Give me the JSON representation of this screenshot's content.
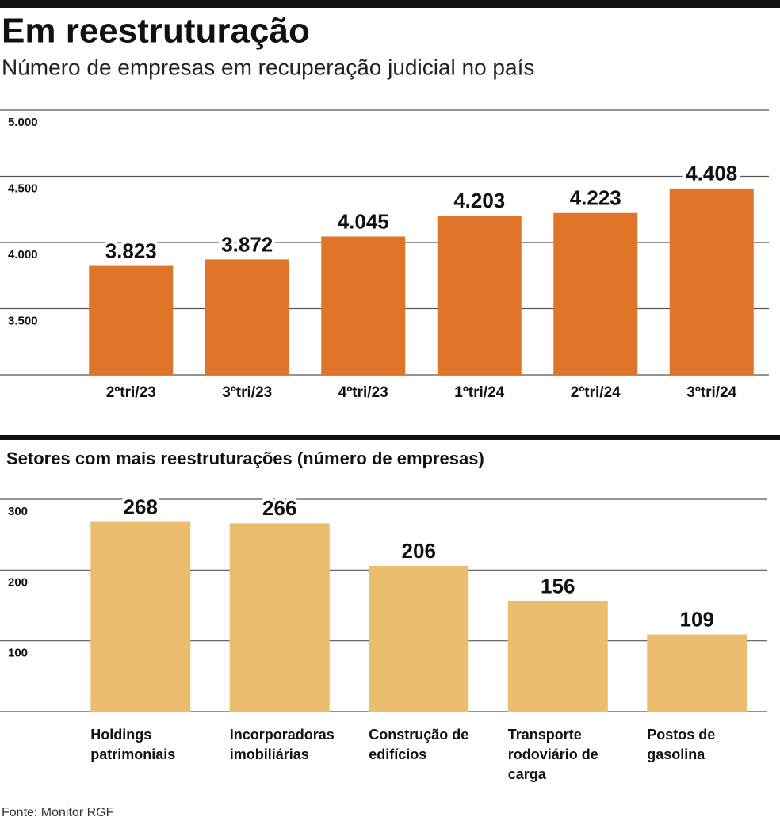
{
  "chart_data": [
    {
      "type": "bar",
      "title": "Em reestruturação",
      "subtitle": "Número de empresas em recuperação judicial no país",
      "categories": [
        "2ºtri/23",
        "3ºtri/23",
        "4ºtri/23",
        "1ºtri/24",
        "2ºtri/24",
        "3ºtri/24"
      ],
      "values": [
        3823,
        3872,
        4045,
        4203,
        4223,
        4408
      ],
      "value_labels": [
        "3.823",
        "3.872",
        "4.045",
        "4.203",
        "4.223",
        "4.408"
      ],
      "color": "#e07428",
      "ylim": [
        3000,
        5000
      ],
      "yticks": [
        {
          "value": 3500,
          "label": "3.500"
        },
        {
          "value": 4000,
          "label": "4.000"
        },
        {
          "value": 4500,
          "label": "4.500"
        },
        {
          "value": 5000,
          "label": "5.000"
        }
      ],
      "grid": true
    },
    {
      "type": "bar",
      "title": "Setores com mais reestruturações (número de empresas)",
      "categories": [
        "Holdings patrimoniais",
        "Incorporadoras imobiliárias",
        "Construção de edifícios",
        "Transporte rodoviário de carga",
        "Postos de gasolina"
      ],
      "values": [
        268,
        266,
        206,
        156,
        109
      ],
      "color": "#ebbd6e",
      "ylim": [
        0,
        300
      ],
      "yticks": [
        100,
        200,
        300
      ],
      "grid": true,
      "source": "Fonte: Monitor RGF"
    }
  ]
}
